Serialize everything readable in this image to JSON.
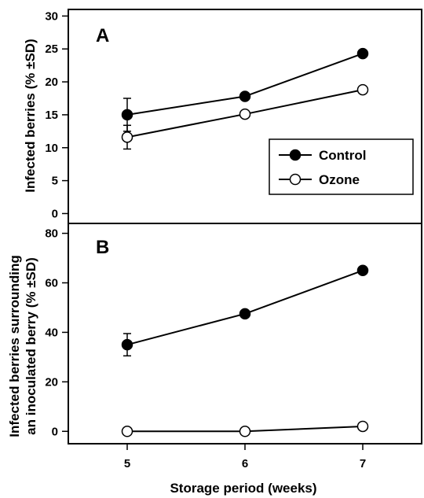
{
  "chart_data": [
    {
      "type": "line",
      "panel_label": "A",
      "x": [
        5,
        6,
        7
      ],
      "xlim": [
        4.5,
        7.5
      ],
      "ylim": [
        -1.5,
        31
      ],
      "yticks": [
        0,
        5,
        10,
        15,
        20,
        25,
        30
      ],
      "ylabel": "Infected berries (% ±SD)",
      "grid": false,
      "legend": "center-right",
      "series": [
        {
          "name": "Control",
          "marker": "filled-circle",
          "values": [
            15.0,
            17.8,
            24.3
          ],
          "sd": [
            2.5,
            0,
            0
          ]
        },
        {
          "name": "Ozone",
          "marker": "open-circle",
          "values": [
            11.6,
            15.1,
            18.8
          ],
          "sd": [
            1.8,
            0,
            0
          ]
        }
      ]
    },
    {
      "type": "line",
      "panel_label": "B",
      "x": [
        5,
        6,
        7
      ],
      "xticks": [
        5,
        6,
        7
      ],
      "xlim": [
        4.5,
        7.5
      ],
      "ylim": [
        -5,
        84
      ],
      "yticks": [
        0,
        20,
        40,
        60,
        80
      ],
      "ylabel_line1": "Infected berries surrounding",
      "ylabel_line2": "an inoculated berry (% ±SD)",
      "xlabel": "Storage period (weeks)",
      "grid": false,
      "series": [
        {
          "name": "Control",
          "marker": "filled-circle",
          "values": [
            35.0,
            47.5,
            65.0
          ],
          "sd": [
            4.5,
            0,
            0
          ]
        },
        {
          "name": "Ozone",
          "marker": "open-circle",
          "values": [
            0,
            0,
            2.0
          ],
          "sd": [
            0,
            0,
            0
          ]
        }
      ]
    }
  ]
}
